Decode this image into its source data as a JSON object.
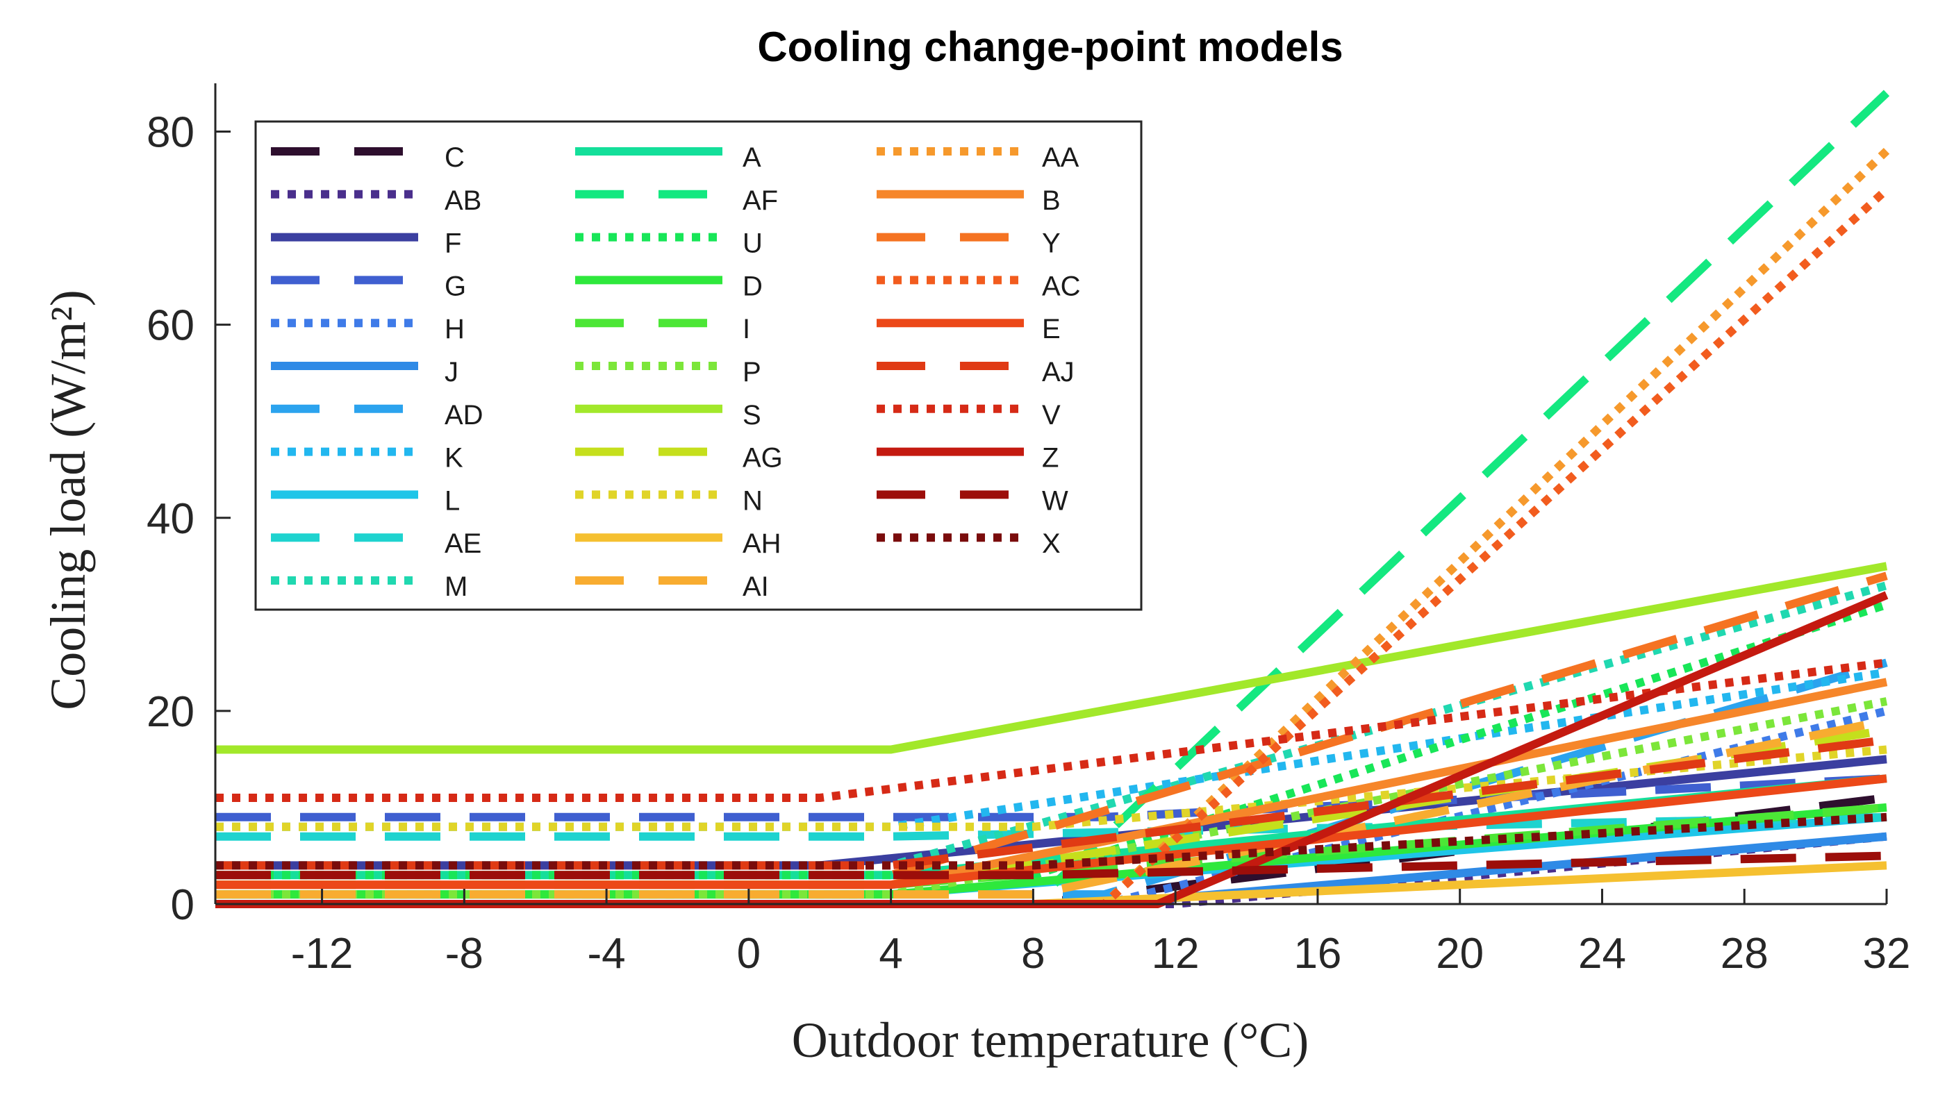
{
  "chart_data": {
    "type": "line",
    "title": "Cooling change-point models",
    "xlabel": "Outdoor temperature (°C)",
    "ylabel": "Cooling load (W/m²)",
    "xlim": [
      -15,
      32
    ],
    "ylim": [
      0,
      85
    ],
    "xticks": [
      -12,
      -8,
      -4,
      0,
      4,
      8,
      12,
      16,
      20,
      24,
      28,
      32
    ],
    "yticks": [
      0,
      20,
      40,
      60,
      80
    ],
    "legend_position": "top-left",
    "series": [
      {
        "name": "C",
        "color": "#2e0f2e",
        "style": "dashed",
        "x": [
          -15,
          8,
          32
        ],
        "y": [
          0,
          0,
          11
        ]
      },
      {
        "name": "AB",
        "color": "#4a2f8c",
        "style": "dotted",
        "x": [
          -15,
          12,
          32
        ],
        "y": [
          0,
          0,
          7
        ]
      },
      {
        "name": "F",
        "color": "#3b3fa0",
        "style": "solid",
        "x": [
          -15,
          2,
          32
        ],
        "y": [
          4,
          4,
          15
        ]
      },
      {
        "name": "G",
        "color": "#3f5fd0",
        "style": "dashed",
        "x": [
          -15,
          10,
          32
        ],
        "y": [
          9,
          9,
          13
        ]
      },
      {
        "name": "H",
        "color": "#3f7be8",
        "style": "dotted",
        "x": [
          -15,
          10,
          32
        ],
        "y": [
          0,
          0,
          20
        ]
      },
      {
        "name": "J",
        "color": "#2f8ae6",
        "style": "solid",
        "x": [
          -15,
          10,
          32
        ],
        "y": [
          0,
          0,
          7
        ]
      },
      {
        "name": "AD",
        "color": "#2ba3ee",
        "style": "dashed",
        "x": [
          -15,
          10,
          32
        ],
        "y": [
          1,
          1,
          25
        ]
      },
      {
        "name": "K",
        "color": "#22b7ef",
        "style": "dotted",
        "x": [
          -15,
          4,
          32
        ],
        "y": [
          8,
          8,
          24
        ]
      },
      {
        "name": "L",
        "color": "#1ec5e8",
        "style": "solid",
        "x": [
          -15,
          4,
          32
        ],
        "y": [
          1,
          1,
          9
        ]
      },
      {
        "name": "AE",
        "color": "#1ed3cf",
        "style": "dashed",
        "x": [
          -15,
          4,
          32
        ],
        "y": [
          7,
          7,
          9
        ]
      },
      {
        "name": "M",
        "color": "#20d8b0",
        "style": "dotted",
        "x": [
          -15,
          4,
          32
        ],
        "y": [
          4,
          4,
          33
        ]
      },
      {
        "name": "A",
        "color": "#14df9a",
        "style": "solid",
        "x": [
          -15,
          4,
          32
        ],
        "y": [
          3,
          3,
          13
        ]
      },
      {
        "name": "AF",
        "color": "#14e880",
        "style": "dashed",
        "x": [
          -15,
          8,
          32
        ],
        "y": [
          0,
          0,
          84
        ]
      },
      {
        "name": "U",
        "color": "#18e658",
        "style": "dotted",
        "x": [
          -15,
          8,
          32
        ],
        "y": [
          3,
          3,
          31
        ]
      },
      {
        "name": "D",
        "color": "#2ee83c",
        "style": "solid",
        "x": [
          -15,
          4,
          32
        ],
        "y": [
          1,
          1,
          10
        ]
      },
      {
        "name": "I",
        "color": "#4ce636",
        "style": "dashed",
        "x": [
          -15,
          4,
          32
        ],
        "y": [
          2,
          2,
          10
        ]
      },
      {
        "name": "P",
        "color": "#7ce63a",
        "style": "dotted",
        "x": [
          -15,
          4,
          32
        ],
        "y": [
          1,
          1,
          21
        ]
      },
      {
        "name": "S",
        "color": "#a2e82a",
        "style": "solid",
        "x": [
          -15,
          4,
          32
        ],
        "y": [
          16,
          16,
          35
        ]
      },
      {
        "name": "AG",
        "color": "#c5df1c",
        "style": "dashed",
        "x": [
          -15,
          4,
          32
        ],
        "y": [
          2,
          2,
          18
        ]
      },
      {
        "name": "N",
        "color": "#e0d428",
        "style": "dotted",
        "x": [
          -15,
          8,
          32
        ],
        "y": [
          8,
          8,
          16
        ]
      },
      {
        "name": "AH",
        "color": "#f5c030",
        "style": "solid",
        "x": [
          -15,
          8,
          32
        ],
        "y": [
          0,
          0,
          4
        ]
      },
      {
        "name": "AI",
        "color": "#f8ac30",
        "style": "dashed",
        "x": [
          -15,
          8,
          32
        ],
        "y": [
          1,
          1,
          19
        ]
      },
      {
        "name": "AA",
        "color": "#f6992c",
        "style": "dotted",
        "x": [
          -15,
          10,
          32
        ],
        "y": [
          0,
          0,
          78
        ]
      },
      {
        "name": "B",
        "color": "#f6862a",
        "style": "solid",
        "x": [
          -15,
          4,
          32
        ],
        "y": [
          2,
          2,
          23
        ]
      },
      {
        "name": "Y",
        "color": "#f57322",
        "style": "dashed",
        "x": [
          -15,
          4,
          32
        ],
        "y": [
          3,
          3,
          34
        ]
      },
      {
        "name": "AC",
        "color": "#f25c1e",
        "style": "dotted",
        "x": [
          -15,
          10,
          32
        ],
        "y": [
          0,
          0,
          74
        ]
      },
      {
        "name": "E",
        "color": "#ec4818",
        "style": "solid",
        "x": [
          -15,
          4,
          32
        ],
        "y": [
          2,
          2,
          13
        ]
      },
      {
        "name": "AJ",
        "color": "#e03a14",
        "style": "dashed",
        "x": [
          -15,
          4,
          32
        ],
        "y": [
          4,
          4,
          17
        ]
      },
      {
        "name": "V",
        "color": "#d62a16",
        "style": "dotted",
        "x": [
          -15,
          2,
          32
        ],
        "y": [
          11,
          11,
          25
        ]
      },
      {
        "name": "Z",
        "color": "#c41a10",
        "style": "solid",
        "x": [
          -15,
          11.5,
          32
        ],
        "y": [
          0,
          0,
          32
        ]
      },
      {
        "name": "W",
        "color": "#9c0e0a",
        "style": "dashed",
        "x": [
          -15,
          8,
          32
        ],
        "y": [
          3,
          3,
          5
        ]
      },
      {
        "name": "X",
        "color": "#7a0c0c",
        "style": "dotted",
        "x": [
          -15,
          8,
          32
        ],
        "y": [
          4,
          4,
          9
        ]
      }
    ]
  }
}
